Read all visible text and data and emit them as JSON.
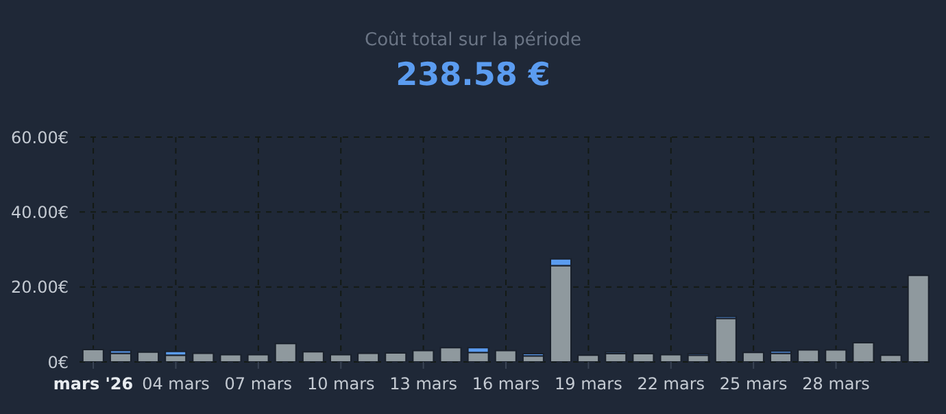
{
  "chart_data": {
    "type": "bar",
    "title": "Coût total sur la période",
    "subtitle": "238.58 €",
    "categories": [
      "mars '26",
      null,
      null,
      "04 mars",
      null,
      null,
      "07 mars",
      null,
      null,
      "10 mars",
      null,
      null,
      "13 mars",
      null,
      null,
      "16 mars",
      null,
      null,
      "19 mars",
      null,
      null,
      "22 mars",
      null,
      null,
      "25 mars",
      null,
      null,
      "28 mars",
      null,
      null,
      null
    ],
    "stacked": true,
    "series": [
      {
        "color": "#8f999e",
        "values": [
          3.3,
          2.3,
          2.6,
          1.8,
          2.3,
          1.9,
          1.9,
          4.9,
          2.7,
          1.9,
          2.3,
          2.4,
          3.0,
          3.8,
          2.5,
          3.0,
          1.6,
          25.7,
          1.8,
          2.2,
          2.2,
          1.9,
          1.8,
          11.6,
          2.5,
          2.3,
          3.2,
          3.2,
          5.1,
          1.8,
          23.1
        ]
      },
      {
        "color": "#5b9cf0",
        "values": [
          null,
          0.7,
          null,
          1.0,
          null,
          null,
          null,
          null,
          null,
          null,
          null,
          null,
          null,
          null,
          1.3,
          null,
          0.6,
          1.8,
          null,
          0.4,
          null,
          null,
          0.4,
          0.5,
          null,
          0.6,
          null,
          null,
          null,
          null,
          null
        ]
      }
    ],
    "ylim": [
      0,
      60
    ],
    "yticks": [
      {
        "value": 0,
        "label": "0€"
      },
      {
        "value": 20,
        "label": "20.00€"
      },
      {
        "value": 40,
        "label": "40.00€"
      },
      {
        "value": 60,
        "label": "60.00€"
      }
    ],
    "grid": true
  }
}
